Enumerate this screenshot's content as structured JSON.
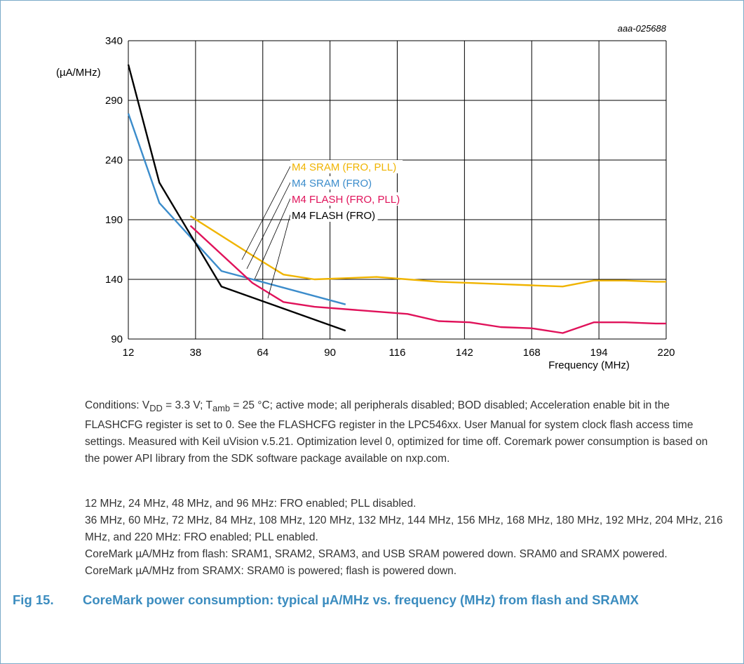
{
  "chart_data": {
    "type": "line",
    "figure_ref": "aaa-025688",
    "ylabel": "(µA/MHz)",
    "xlabel": "Frequency (MHz)",
    "xlim": [
      12,
      220
    ],
    "ylim": [
      90,
      340
    ],
    "x_ticks": [
      "12",
      "38",
      "64",
      "90",
      "116",
      "142",
      "168",
      "194",
      "220"
    ],
    "y_ticks": [
      "90",
      "140",
      "190",
      "240",
      "290",
      "340"
    ],
    "grid": true,
    "series": [
      {
        "name": "M4 SRAM (FRO, PLL)",
        "color": "#f0b400",
        "x": [
          36,
          60,
          72,
          84,
          108,
          120,
          132,
          144,
          156,
          168,
          180,
          192,
          204,
          216,
          220
        ],
        "y": [
          193,
          160,
          144,
          140,
          142,
          140,
          138,
          137,
          136,
          135,
          134,
          139,
          139,
          138,
          138
        ]
      },
      {
        "name": "M4 SRAM (FRO)",
        "color": "#3b8ccb",
        "x": [
          12,
          24,
          48,
          96
        ],
        "y": [
          279,
          204,
          147,
          119
        ]
      },
      {
        "name": "M4 FLASH (FRO, PLL)",
        "color": "#e0125a",
        "x": [
          36,
          60,
          72,
          84,
          108,
          120,
          132,
          144,
          156,
          168,
          180,
          192,
          204,
          216,
          220
        ],
        "y": [
          185,
          137,
          121,
          117,
          113,
          111,
          105,
          104,
          100,
          99,
          95,
          104,
          104,
          103,
          103
        ]
      },
      {
        "name": "M4 FLASH (FRO)",
        "color": "#000000",
        "x": [
          12,
          24,
          48,
          96
        ],
        "y": [
          320,
          221,
          134,
          97
        ]
      }
    ]
  },
  "conditions_text": "Conditions: V DD = 3.3 V; Tamb = 25 °C; active mode; all peripherals disabled; BOD disabled;",
  "conditions": {
    "prefix": "Conditions: V",
    "vdd_sub": "DD",
    "after_vdd": " = 3.3 V; T",
    "tamb_sub": "amb",
    "after_tamb": " = 25 °C; active mode; all peripherals disabled; BOD disabled; Acceleration enable bit in the FLASHCFG register is set to 0. See the FLASHCFG register in the LPC546xx. User Manual for system clock flash access time settings. Measured with Keil uVision v.5.21. Optimization level 0, optimized for time off. Coremark power consumption is based on the power API library from the SDK software package available on nxp.com."
  },
  "notes": [
    "12 MHz, 24 MHz, 48 MHz, and 96 MHz: FRO enabled; PLL disabled.",
    "36 MHz, 60 MHz, 72 MHz, 84 MHz, 108 MHz, 120 MHz, 132 MHz, 144 MHz, 156 MHz, 168 MHz, 180 MHz, 192 MHz, 204 MHz, 216 MHz, and 220 MHz: FRO enabled; PLL enabled.",
    "CoreMark µA/MHz from flash: SRAM1, SRAM2, SRAM3, and USB SRAM powered down. SRAM0 and SRAMX powered.",
    "CoreMark µA/MHz from SRAMX: SRAM0 is powered; flash is powered down."
  ],
  "caption": {
    "number": "Fig 15.",
    "title": "CoreMark power consumption: typical µA/MHz vs. frequency (MHz) from flash and SRAMX"
  }
}
